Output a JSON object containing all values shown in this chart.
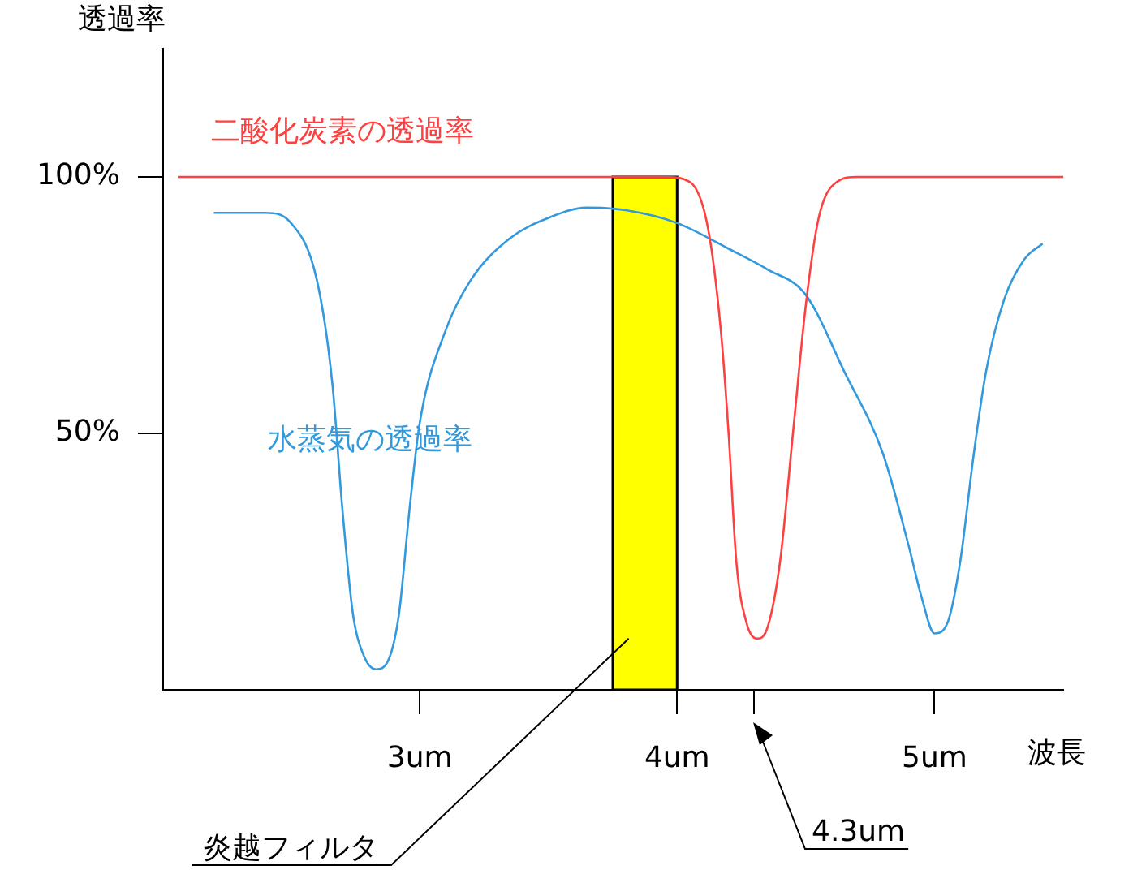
{
  "chart_data": {
    "type": "line",
    "xlabel": "波長",
    "ylabel": "透過率",
    "xlim": [
      2,
      5.5
    ],
    "ylim": [
      0,
      125
    ],
    "xticks": [
      {
        "value": 3,
        "label": "3um"
      },
      {
        "value": 4,
        "label": "4um"
      },
      {
        "value": 4.3,
        "label": null
      },
      {
        "value": 5,
        "label": "5um"
      }
    ],
    "yticks": [
      {
        "value": 50,
        "label": "50%"
      },
      {
        "value": 100,
        "label": "100%"
      }
    ],
    "grid": false,
    "legend": false,
    "marker": "none",
    "line_style": "solid",
    "series": [
      {
        "name": "二酸化炭素の透過率",
        "color": "#ff4040",
        "x": [
          2.06,
          3.95,
          4.05,
          4.12,
          4.17,
          4.2,
          4.23,
          4.27,
          4.31,
          4.35,
          4.4,
          4.45,
          4.5,
          4.55,
          4.62,
          4.7,
          5.5
        ],
        "values": [
          100,
          100,
          99,
          90,
          70,
          50,
          25,
          13,
          10,
          12,
          25,
          50,
          75,
          92,
          99,
          100,
          100
        ]
      },
      {
        "name": "水蒸気の透過率",
        "color": "#3399dd",
        "x": [
          2.2,
          2.4,
          2.5,
          2.6,
          2.66,
          2.7,
          2.74,
          2.78,
          2.83,
          2.88,
          2.92,
          2.96,
          3.0,
          3.1,
          3.2,
          3.35,
          3.5,
          3.65,
          3.8,
          4.0,
          4.2,
          4.35,
          4.5,
          4.65,
          4.8,
          4.9,
          4.95,
          5.0,
          5.05,
          5.1,
          5.15,
          5.2,
          5.27,
          5.35,
          5.42
        ],
        "values": [
          93,
          93,
          91,
          80,
          60,
          35,
          15,
          7,
          4,
          6,
          15,
          35,
          52,
          70,
          80,
          88,
          92,
          94,
          93.5,
          91,
          86,
          82,
          77,
          62,
          46,
          28,
          18,
          11,
          13,
          25,
          45,
          62,
          76,
          84,
          87
        ]
      }
    ],
    "bands": [
      {
        "axis": "x",
        "from": 3.75,
        "to": 4.0,
        "label": "炎越フィルタ",
        "color": "#ffff00"
      }
    ],
    "annotations": [
      "4.3um"
    ]
  }
}
